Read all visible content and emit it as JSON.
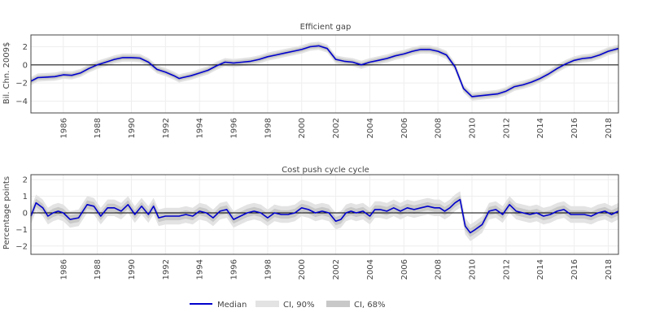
{
  "colors": {
    "median": "#0000cc",
    "ci90": "#e3e3e3",
    "ci68": "#c8c8c8",
    "grid": "#eeeeee",
    "zero": "#000000",
    "axis": "#444444"
  },
  "legend": {
    "median_label": "Median",
    "ci90_label": "CI, 90%",
    "ci68_label": "CI, 68%",
    "placement": "bottom-center"
  },
  "chart_data": [
    {
      "type": "line",
      "title": "Efficient gap",
      "ylabel": "Bil. Chn. 2009$",
      "xlabel": "",
      "xlim": [
        1984.1,
        2018.6
      ],
      "ylim": [
        -5.3,
        3.3
      ],
      "yticks": [
        -4,
        -2,
        0,
        2
      ],
      "ytick_labels": [
        "−4",
        "−2",
        "0",
        "2"
      ],
      "xticks": [
        1986,
        1988,
        1990,
        1992,
        1994,
        1996,
        1998,
        2000,
        2002,
        2004,
        2006,
        2008,
        2010,
        2012,
        2014,
        2016,
        2018
      ],
      "xtick_labels": [
        "1986",
        "1988",
        "1990",
        "1992",
        "1994",
        "1996",
        "1998",
        "2000",
        "2002",
        "2004",
        "2006",
        "2008",
        "2010",
        "2012",
        "2014",
        "2016",
        "2018"
      ],
      "grid": true,
      "ci68_halfwidth": 0.25,
      "ci90_halfwidth": 0.45,
      "x": [
        1984.1,
        1984.5,
        1985.0,
        1985.5,
        1986.0,
        1986.5,
        1987.0,
        1987.5,
        1988.0,
        1988.5,
        1989.0,
        1989.5,
        1990.0,
        1990.5,
        1991.0,
        1991.5,
        1992.0,
        1992.5,
        1992.8,
        1993.0,
        1993.5,
        1994.0,
        1994.5,
        1995.0,
        1995.5,
        1996.0,
        1996.5,
        1997.0,
        1997.5,
        1998.0,
        1998.5,
        1999.0,
        1999.5,
        2000.0,
        2000.5,
        2001.0,
        2001.5,
        2002.0,
        2002.5,
        2003.0,
        2003.5,
        2004.0,
        2004.5,
        2005.0,
        2005.5,
        2006.0,
        2006.5,
        2007.0,
        2007.5,
        2008.0,
        2008.5,
        2009.0,
        2009.5,
        2010.0,
        2010.5,
        2011.0,
        2011.5,
        2012.0,
        2012.5,
        2013.0,
        2013.5,
        2014.0,
        2014.5,
        2015.0,
        2015.5,
        2016.0,
        2016.5,
        2017.0,
        2017.5,
        2018.0,
        2018.6
      ],
      "median": [
        -1.8,
        -1.4,
        -1.35,
        -1.3,
        -1.1,
        -1.15,
        -0.9,
        -0.4,
        0.0,
        0.3,
        0.6,
        0.8,
        0.8,
        0.75,
        0.3,
        -0.5,
        -0.8,
        -1.2,
        -1.5,
        -1.4,
        -1.2,
        -0.9,
        -0.6,
        -0.1,
        0.3,
        0.2,
        0.3,
        0.4,
        0.6,
        0.9,
        1.1,
        1.3,
        1.5,
        1.7,
        2.0,
        2.1,
        1.8,
        0.6,
        0.4,
        0.3,
        0.0,
        0.3,
        0.5,
        0.7,
        1.0,
        1.2,
        1.5,
        1.7,
        1.7,
        1.5,
        1.1,
        -0.2,
        -2.6,
        -3.5,
        -3.4,
        -3.3,
        -3.2,
        -2.9,
        -2.4,
        -2.2,
        -1.9,
        -1.5,
        -1.0,
        -0.4,
        0.1,
        0.5,
        0.7,
        0.8,
        1.1,
        1.5,
        1.8
      ]
    },
    {
      "type": "line",
      "title": "Cost push cycle cycle",
      "ylabel": "Percentage points",
      "xlabel": "",
      "xlim": [
        1984.1,
        2018.6
      ],
      "ylim": [
        -2.5,
        2.3
      ],
      "yticks": [
        -2,
        -1,
        0,
        1,
        2
      ],
      "ytick_labels": [
        "−2",
        "−1",
        "0",
        "1",
        "2"
      ],
      "xticks": [
        1986,
        1988,
        1990,
        1992,
        1994,
        1996,
        1998,
        2000,
        2002,
        2004,
        2006,
        2008,
        2010,
        2012,
        2014,
        2016,
        2018
      ],
      "xtick_labels": [
        "1986",
        "1988",
        "1990",
        "1992",
        "1994",
        "1996",
        "1998",
        "2000",
        "2002",
        "2004",
        "2006",
        "2008",
        "2010",
        "2012",
        "2014",
        "2016",
        "2018"
      ],
      "grid": true,
      "ci68_halfwidth": 0.25,
      "ci90_halfwidth": 0.5,
      "x": [
        1984.1,
        1984.4,
        1984.8,
        1985.1,
        1985.4,
        1985.7,
        1986.0,
        1986.4,
        1986.9,
        1987.4,
        1987.8,
        1988.2,
        1988.6,
        1989.0,
        1989.4,
        1989.8,
        1990.2,
        1990.6,
        1991.0,
        1991.3,
        1991.6,
        1992.0,
        1992.4,
        1992.8,
        1993.2,
        1993.6,
        1994.0,
        1994.4,
        1994.8,
        1995.2,
        1995.6,
        1996.0,
        1996.4,
        1996.8,
        1997.2,
        1997.6,
        1998.0,
        1998.4,
        1998.8,
        1999.2,
        1999.6,
        2000.0,
        2000.4,
        2000.8,
        2001.2,
        2001.6,
        2002.0,
        2002.3,
        2002.6,
        2002.9,
        2003.2,
        2003.6,
        2004.0,
        2004.3,
        2004.6,
        2005.0,
        2005.4,
        2005.8,
        2006.2,
        2006.6,
        2007.0,
        2007.4,
        2007.8,
        2008.1,
        2008.4,
        2008.7,
        2009.0,
        2009.3,
        2009.6,
        2009.9,
        2010.2,
        2010.6,
        2011.0,
        2011.4,
        2011.8,
        2012.2,
        2012.6,
        2013.0,
        2013.4,
        2013.8,
        2014.2,
        2014.6,
        2015.0,
        2015.4,
        2015.8,
        2016.2,
        2016.6,
        2017.0,
        2017.4,
        2017.8,
        2018.2,
        2018.6
      ],
      "median": [
        -0.2,
        0.6,
        0.3,
        -0.2,
        0.0,
        0.1,
        0.0,
        -0.4,
        -0.3,
        0.5,
        0.4,
        -0.2,
        0.3,
        0.3,
        0.1,
        0.5,
        -0.1,
        0.4,
        -0.1,
        0.4,
        -0.3,
        -0.2,
        -0.2,
        -0.2,
        -0.1,
        -0.2,
        0.1,
        0.0,
        -0.3,
        0.1,
        0.2,
        -0.4,
        -0.2,
        0.0,
        0.1,
        0.0,
        -0.3,
        0.0,
        -0.1,
        -0.1,
        0.0,
        0.3,
        0.2,
        0.0,
        0.1,
        0.0,
        -0.5,
        -0.4,
        0.0,
        0.1,
        0.0,
        0.1,
        -0.2,
        0.2,
        0.2,
        0.1,
        0.3,
        0.1,
        0.3,
        0.2,
        0.3,
        0.4,
        0.3,
        0.3,
        0.1,
        0.3,
        0.6,
        0.8,
        -0.8,
        -1.2,
        -1.0,
        -0.7,
        0.1,
        0.2,
        -0.1,
        0.5,
        0.1,
        0.0,
        -0.1,
        0.0,
        -0.2,
        -0.1,
        0.1,
        0.2,
        -0.1,
        -0.1,
        -0.1,
        -0.2,
        0.0,
        0.1,
        -0.1,
        0.1
      ]
    }
  ]
}
